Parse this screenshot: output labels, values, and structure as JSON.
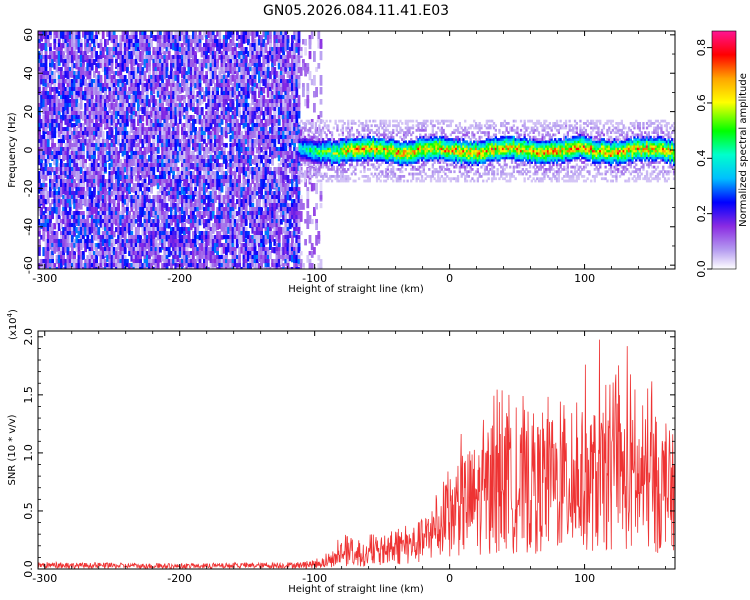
{
  "title": "GN05.2026.084.11.41.E03",
  "chart_data": [
    {
      "id": "spectrogram",
      "type": "heatmap",
      "xlabel": "Height of straight line (km)",
      "ylabel": "Frequency (Hz)",
      "xlim": [
        -305,
        167
      ],
      "ylim": [
        -62,
        62
      ],
      "xticks": [
        -300,
        -200,
        -100,
        0,
        100
      ],
      "xtick_labels": [
        "-300",
        "-200",
        "-100",
        "0",
        "100"
      ],
      "yticks": [
        -60,
        -40,
        -20,
        0,
        20,
        40,
        60
      ],
      "ytick_labels": [
        "-60",
        "-40",
        "-20",
        "0",
        "20",
        "40",
        "60"
      ],
      "noise_region": {
        "x": [
          -305,
          -112
        ],
        "y": [
          -62,
          62
        ],
        "amplitude_range": [
          0.1,
          0.3
        ]
      },
      "noise_tail": {
        "x": [
          -112,
          -95
        ],
        "amplitude_range": [
          0.02,
          0.15
        ]
      },
      "signal_band": {
        "x": [
          -112,
          167
        ],
        "center_hz": 0,
        "half_width_hz": 6,
        "peak_amplitude": 0.85
      },
      "colorbar": {
        "label": "Normalized spectral amplitude",
        "range": [
          0.0,
          0.86
        ],
        "ticks": [
          0.0,
          0.2,
          0.4,
          0.6,
          0.8
        ],
        "tick_labels": [
          "0.0",
          "0.2",
          "0.4",
          "0.6",
          "0.8"
        ],
        "colors": [
          "#ffffff",
          "#b59cf0",
          "#8a2be2",
          "#0000ff",
          "#00bfff",
          "#00ffcc",
          "#00ff00",
          "#ffff00",
          "#ffa500",
          "#ff0000",
          "#ff1493"
        ]
      }
    },
    {
      "id": "snr",
      "type": "line",
      "xlabel": "Height of straight line (km)",
      "ylabel": "SNR (10 * v/v)",
      "scale_note": "(x10",
      "scale_exp": "4",
      "scale_close": ")",
      "xlim": [
        -305,
        167
      ],
      "ylim": [
        0,
        2.05
      ],
      "xticks": [
        -300,
        -200,
        -100,
        0,
        100
      ],
      "xtick_labels": [
        "-300",
        "-200",
        "-100",
        "0",
        "100"
      ],
      "yticks": [
        0,
        0.5,
        1.0,
        1.5,
        2.0
      ],
      "ytick_labels": [
        "0.0",
        "0.5",
        "1.0",
        "1.5",
        "2.0"
      ],
      "series": [
        {
          "name": "SNR",
          "color": "#ee3333",
          "envelope_x": [
            -305,
            -200,
            -110,
            -95,
            -85,
            -80,
            -70,
            -60,
            -50,
            -40,
            -30,
            -20,
            -10,
            0,
            10,
            20,
            30,
            40,
            50,
            60,
            70,
            80,
            90,
            100,
            110,
            120,
            130,
            140,
            150,
            160,
            167
          ],
          "envelope_max": [
            0.06,
            0.05,
            0.06,
            0.1,
            0.2,
            0.35,
            0.25,
            0.3,
            0.33,
            0.35,
            0.45,
            0.5,
            0.65,
            0.95,
            1.2,
            1.3,
            1.45,
            1.7,
            1.45,
            1.55,
            1.6,
            1.5,
            1.55,
            1.75,
            2.03,
            1.6,
            2.03,
            1.5,
            1.65,
            1.35,
            1.1
          ],
          "envelope_typical": [
            0.04,
            0.03,
            0.04,
            0.06,
            0.1,
            0.18,
            0.14,
            0.15,
            0.18,
            0.2,
            0.25,
            0.3,
            0.4,
            0.55,
            0.7,
            0.75,
            0.8,
            0.85,
            0.85,
            0.85,
            0.9,
            0.9,
            0.9,
            0.95,
            0.95,
            0.9,
            0.95,
            0.9,
            0.9,
            0.85,
            0.8
          ]
        }
      ]
    }
  ]
}
